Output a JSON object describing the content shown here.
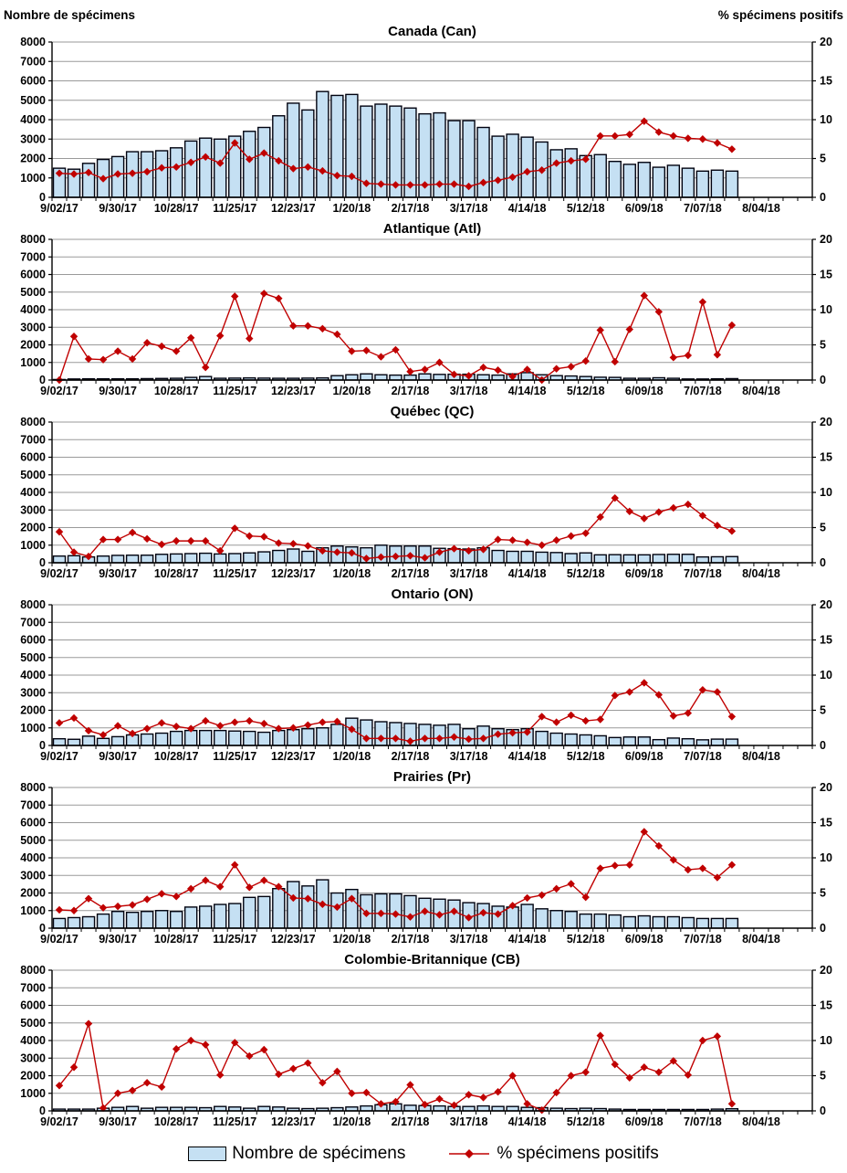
{
  "page": {
    "axes_header": {
      "left_title": "Nombre de spécimens",
      "right_title": "% spécimens positifs"
    }
  },
  "legend": {
    "bars_label": "Nombre de spécimens",
    "line_label": "% spécimens positifs"
  },
  "colors": {
    "bar_fill": "#C5E0F3",
    "bar_stroke": "#00020F",
    "line": "#C00000",
    "grid": "#9A9A9A",
    "axis": "#000000"
  },
  "axis_config": {
    "left": {
      "min": 0,
      "max": 8000,
      "step": 1000,
      "tick_labels": [
        "0",
        "1000",
        "2000",
        "3000",
        "4000",
        "5000",
        "6000",
        "7000",
        "8000"
      ]
    },
    "right": {
      "min": 0,
      "max": 20,
      "step": 5,
      "tick_labels": [
        "0",
        "5",
        "10",
        "15",
        "20"
      ]
    },
    "x": {
      "weeks_total": 52,
      "label_every": 4,
      "tick_labels": [
        "9/02/17",
        "9/30/17",
        "10/28/17",
        "11/25/17",
        "12/23/17",
        "1/20/18",
        "2/17/18",
        "3/17/18",
        "4/14/18",
        "5/12/18",
        "6/09/18",
        "7/07/18",
        "8/04/18"
      ]
    }
  },
  "series_meta": [
    {
      "name": "Nombre de spécimens",
      "type": "bar",
      "axis": "left"
    },
    {
      "name": "% spécimens positifs",
      "type": "line",
      "axis": "right"
    }
  ],
  "chart_data": [
    {
      "id": "canada",
      "title": "Canada (Can)",
      "type": "bar",
      "bars": [
        1500,
        1450,
        1750,
        1950,
        2100,
        2350,
        2350,
        2400,
        2550,
        2900,
        3050,
        3000,
        3150,
        3400,
        3600,
        4200,
        4850,
        4500,
        5450,
        5250,
        5300,
        4700,
        4800,
        4700,
        4600,
        4300,
        4350,
        3950,
        3950,
        3600,
        3150,
        3250,
        3100,
        2850,
        2450,
        2500,
        2150,
        2200,
        1850,
        1700,
        1800,
        1550,
        1650,
        1500,
        1350,
        1400,
        1350
      ],
      "pct": [
        3.1,
        3.0,
        3.2,
        2.4,
        3.0,
        3.1,
        3.3,
        3.8,
        3.9,
        4.5,
        5.2,
        4.4,
        7.0,
        4.9,
        5.7,
        4.7,
        3.7,
        3.9,
        3.4,
        2.8,
        2.7,
        1.8,
        1.7,
        1.6,
        1.6,
        1.6,
        1.7,
        1.7,
        1.4,
        1.9,
        2.2,
        2.6,
        3.3,
        3.5,
        4.4,
        4.7,
        4.9,
        7.9,
        7.9,
        8.1,
        9.8,
        8.4,
        7.9,
        7.6,
        7.5,
        7.0,
        6.2
      ]
    },
    {
      "id": "atlantique",
      "title": "Atlantique (Atl)",
      "type": "bar",
      "bars": [
        30,
        60,
        70,
        70,
        70,
        70,
        80,
        90,
        100,
        150,
        200,
        100,
        110,
        120,
        110,
        100,
        100,
        110,
        120,
        250,
        300,
        350,
        300,
        280,
        280,
        350,
        320,
        330,
        330,
        300,
        280,
        350,
        420,
        300,
        250,
        230,
        200,
        160,
        150,
        100,
        100,
        130,
        100,
        60,
        60,
        70,
        80
      ],
      "pct": [
        0,
        6.2,
        3.0,
        2.9,
        4.1,
        3.0,
        5.3,
        4.8,
        4.1,
        6.0,
        1.8,
        6.3,
        11.9,
        5.9,
        12.3,
        11.6,
        7.7,
        7.7,
        7.3,
        6.5,
        4.1,
        4.2,
        3.3,
        4.3,
        1.2,
        1.5,
        2.5,
        0.8,
        0.6,
        1.8,
        1.4,
        0.5,
        1.5,
        0.0,
        1.6,
        1.9,
        2.7,
        7.1,
        2.6,
        7.2,
        12.0,
        9.7,
        3.2,
        3.5,
        11.1,
        3.6,
        7.8
      ]
    },
    {
      "id": "quebec",
      "title": "Québec (QC)",
      "type": "bar",
      "bars": [
        380,
        400,
        330,
        380,
        420,
        430,
        430,
        480,
        500,
        520,
        540,
        500,
        520,
        560,
        620,
        700,
        780,
        650,
        850,
        950,
        900,
        850,
        1000,
        950,
        950,
        950,
        820,
        800,
        780,
        850,
        700,
        650,
        650,
        600,
        580,
        520,
        560,
        450,
        460,
        450,
        450,
        470,
        480,
        480,
        330,
        340,
        350
      ],
      "pct": [
        4.4,
        1.5,
        0.9,
        3.3,
        3.3,
        4.3,
        3.4,
        2.6,
        3.1,
        3.1,
        3.1,
        1.7,
        4.9,
        3.8,
        3.7,
        2.8,
        2.7,
        2.4,
        1.7,
        1.5,
        1.4,
        0.6,
        0.8,
        0.9,
        1.0,
        0.7,
        1.5,
        2.0,
        1.7,
        1.9,
        3.3,
        3.2,
        2.9,
        2.5,
        3.2,
        3.8,
        4.2,
        6.5,
        9.2,
        7.3,
        6.3,
        7.2,
        7.8,
        8.3,
        6.7,
        5.3,
        4.5
      ]
    },
    {
      "id": "ontario",
      "title": "Ontario (ON)",
      "type": "bar",
      "bars": [
        380,
        350,
        530,
        400,
        500,
        600,
        650,
        700,
        800,
        850,
        850,
        850,
        820,
        800,
        750,
        850,
        900,
        950,
        1000,
        1200,
        1550,
        1450,
        1350,
        1300,
        1250,
        1200,
        1150,
        1200,
        950,
        1100,
        950,
        900,
        950,
        800,
        700,
        650,
        600,
        550,
        450,
        480,
        480,
        330,
        420,
        380,
        320,
        360,
        360
      ],
      "pct": [
        3.2,
        3.9,
        2.1,
        1.5,
        2.8,
        1.7,
        2.4,
        3.2,
        2.7,
        2.4,
        3.5,
        2.8,
        3.3,
        3.5,
        3.1,
        2.4,
        2.5,
        2.9,
        3.3,
        3.4,
        2.3,
        1.0,
        1.0,
        1.0,
        0.6,
        1.0,
        1.0,
        1.2,
        0.9,
        1.0,
        1.6,
        1.8,
        1.9,
        4.1,
        3.3,
        4.3,
        3.5,
        3.7,
        7.1,
        7.6,
        8.9,
        7.2,
        4.2,
        4.6,
        7.9,
        7.6,
        4.1
      ]
    },
    {
      "id": "prairies",
      "title": "Prairies (Pr)",
      "type": "bar",
      "bars": [
        550,
        600,
        650,
        800,
        950,
        900,
        950,
        1000,
        950,
        1200,
        1250,
        1350,
        1400,
        1750,
        1800,
        2250,
        2650,
        2400,
        2750,
        2000,
        2200,
        1900,
        1950,
        1950,
        1850,
        1700,
        1650,
        1600,
        1450,
        1400,
        1250,
        1200,
        1350,
        1100,
        1000,
        950,
        800,
        800,
        750,
        650,
        700,
        650,
        650,
        600,
        550,
        550,
        550
      ],
      "pct": [
        2.6,
        2.5,
        4.2,
        2.9,
        3.1,
        3.3,
        4.1,
        4.9,
        4.5,
        5.6,
        6.8,
        5.9,
        9.0,
        5.8,
        6.8,
        5.9,
        4.3,
        4.2,
        3.4,
        3.0,
        4.2,
        2.1,
        2.1,
        2.0,
        1.6,
        2.4,
        1.9,
        2.4,
        1.5,
        2.2,
        2.0,
        3.2,
        4.3,
        4.7,
        5.6,
        6.3,
        4.4,
        8.5,
        8.9,
        9.0,
        13.7,
        11.7,
        9.7,
        8.3,
        8.5,
        7.2,
        9.0
      ]
    },
    {
      "id": "colombie-britannique",
      "title": "Colombie-Britannique (CB)",
      "type": "bar",
      "bars": [
        100,
        100,
        100,
        150,
        200,
        250,
        150,
        200,
        200,
        200,
        180,
        250,
        220,
        150,
        250,
        220,
        150,
        130,
        150,
        180,
        220,
        280,
        350,
        400,
        320,
        300,
        280,
        250,
        250,
        280,
        250,
        250,
        200,
        180,
        150,
        130,
        150,
        130,
        100,
        80,
        80,
        80,
        80,
        80,
        80,
        100,
        120
      ],
      "pct": [
        3.6,
        6.2,
        12.4,
        0.4,
        2.5,
        2.9,
        4.0,
        3.4,
        8.8,
        10.0,
        9.4,
        5.1,
        9.7,
        7.8,
        8.7,
        5.2,
        6.0,
        6.8,
        4.0,
        5.6,
        2.5,
        2.6,
        1.0,
        1.3,
        3.7,
        0.9,
        1.7,
        0.8,
        2.3,
        1.9,
        2.7,
        5.0,
        1.0,
        0.1,
        2.6,
        5.0,
        5.5,
        10.7,
        6.6,
        4.7,
        6.2,
        5.5,
        7.1,
        5.1,
        10.0,
        10.6,
        1.0
      ]
    }
  ]
}
